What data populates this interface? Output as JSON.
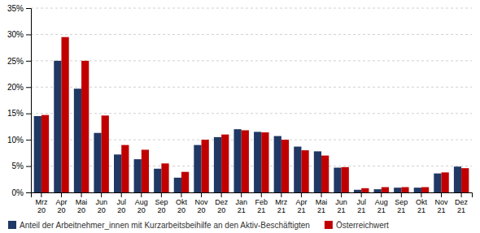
{
  "chart_data": {
    "type": "bar",
    "categories": [
      "Mrz\n20",
      "Apr\n20",
      "Mai\n20",
      "Jun\n20",
      "Jul\n20",
      "Aug\n20",
      "Sep\n20",
      "Okt\n20",
      "Nov\n20",
      "Dez\n20",
      "Jan\n21",
      "Feb\n21",
      "Mrz\n21",
      "Apr\n21",
      "Mai\n21",
      "Jun\n21",
      "Jul\n21",
      "Aug\n21",
      "Sep\n21",
      "Okt\n21",
      "Nov\n21",
      "Dez\n21"
    ],
    "series": [
      {
        "name": "Anteil der Arbeitnehmer_innen mit Kurzarbeitsbeihilfe an den Aktiv-Beschäftigten",
        "color": "#1F3864",
        "values": [
          14.5,
          25.0,
          19.7,
          11.3,
          7.2,
          6.3,
          4.5,
          2.8,
          9.0,
          10.5,
          12.0,
          11.5,
          10.7,
          8.7,
          7.8,
          4.7,
          0.5,
          0.6,
          0.9,
          0.9,
          3.6,
          4.9
        ]
      },
      {
        "name": "Österreichwert",
        "color": "#C00000",
        "values": [
          14.7,
          29.5,
          25.0,
          14.6,
          9.0,
          8.1,
          5.5,
          3.9,
          10.0,
          11.0,
          11.8,
          11.4,
          10.0,
          8.0,
          7.0,
          4.8,
          0.8,
          1.0,
          1.0,
          1.0,
          3.8,
          4.6
        ]
      }
    ],
    "ylim": [
      0,
      35
    ],
    "yticks": [
      {
        "value": 0,
        "label": "0%"
      },
      {
        "value": 5,
        "label": "5%"
      },
      {
        "value": 10,
        "label": "10%"
      },
      {
        "value": 15,
        "label": "15%"
      },
      {
        "value": 20,
        "label": "20%"
      },
      {
        "value": 25,
        "label": "25%"
      },
      {
        "value": 30,
        "label": "30%"
      },
      {
        "value": 35,
        "label": "35%"
      }
    ],
    "grid": true,
    "legend": "bottom"
  }
}
